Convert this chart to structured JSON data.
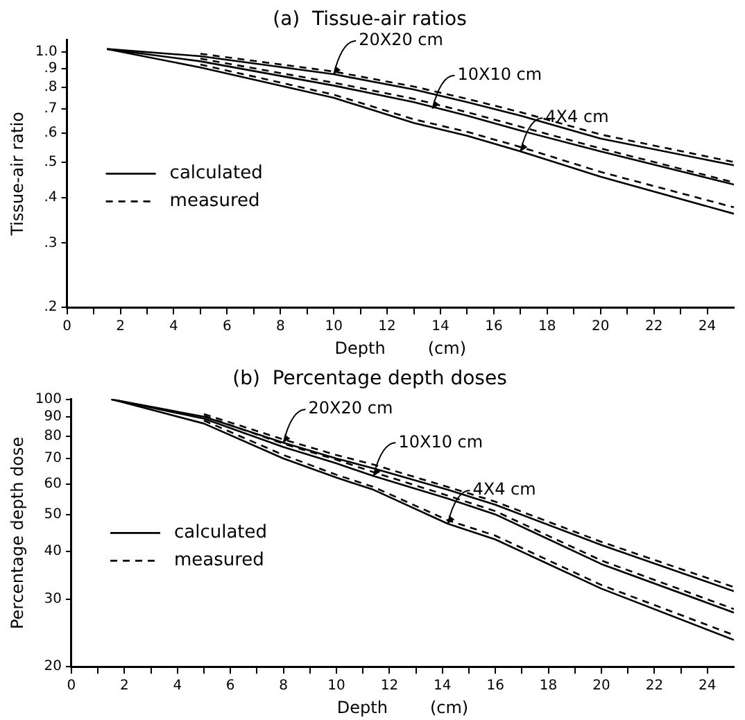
{
  "chart_data": [
    {
      "type": "line",
      "title": "(a)  Tissue-air ratios",
      "xlabel": "Depth        (cm)",
      "ylabel": "Tissue-air ratio",
      "log": "y",
      "grid": false,
      "legend": "left",
      "marker": "none",
      "x": [
        1.5,
        5,
        10,
        13,
        15,
        17,
        20,
        25
      ],
      "xlim": [
        0,
        25
      ],
      "xticks": [
        0,
        {
          "value": 1,
          "label": null
        },
        2,
        {
          "value": 3,
          "label": null
        },
        4,
        {
          "value": 5,
          "label": null
        },
        6,
        {
          "value": 7,
          "label": null
        },
        8,
        {
          "value": 9,
          "label": null
        },
        10,
        {
          "value": 11,
          "label": null
        },
        12,
        {
          "value": 13,
          "label": null
        },
        14,
        {
          "value": 15,
          "label": null
        },
        16,
        {
          "value": 17,
          "label": null
        },
        18,
        {
          "value": 19,
          "label": null
        },
        20,
        {
          "value": 21,
          "label": null
        },
        22,
        {
          "value": 23,
          "label": null
        },
        24
      ],
      "ylim": [
        0.2,
        1.08
      ],
      "yticks": [
        {
          "value": 0.2,
          "label": ".2"
        },
        {
          "value": 0.3,
          "label": ".3"
        },
        {
          "value": 0.4,
          "label": ".4"
        },
        {
          "value": 0.5,
          "label": ".5"
        },
        {
          "value": 0.6,
          "label": ".6"
        },
        {
          "value": 0.7,
          "label": ".7"
        },
        {
          "value": 0.8,
          "label": ".8"
        },
        {
          "value": 0.9,
          "label": ".9"
        },
        {
          "value": 1.0,
          "label": "1.0"
        }
      ],
      "series": [
        {
          "name": "calculated",
          "color": "#000000",
          "line_style": "solid",
          "values": [
            1.02,
            0.975,
            0.87,
            0.79,
            0.73,
            0.67,
            0.58,
            0.49
          ]
        },
        {
          "color": "#000000",
          "line_style": "solid",
          "values": [
            1.02,
            0.944,
            0.81,
            0.73,
            0.67,
            0.61,
            0.535,
            0.434
          ]
        },
        {
          "color": "#000000",
          "line_style": "solid",
          "values": [
            1.02,
            0.908,
            0.75,
            0.64,
            0.59,
            0.535,
            0.456,
            0.361
          ]
        },
        {
          "name": "measured",
          "color": "#000000",
          "line_style": "dashed",
          "values": [
            null,
            0.99,
            0.885,
            0.805,
            0.745,
            0.685,
            0.595,
            0.5
          ]
        },
        {
          "color": "#000000",
          "line_style": "dashed",
          "values": [
            null,
            0.96,
            0.825,
            0.745,
            0.685,
            0.625,
            0.545,
            0.44
          ]
        },
        {
          "color": "#000000",
          "line_style": "dashed",
          "values": [
            null,
            0.925,
            0.765,
            0.655,
            0.605,
            0.55,
            0.47,
            0.376
          ]
        }
      ],
      "annotations": [
        {
          "text": "20X20 cm",
          "x": 10,
          "y": 0.87
        },
        {
          "text": "10X10 cm",
          "x": 13.7,
          "y": 0.7
        },
        {
          "text": "4X4 cm",
          "x": 17,
          "y": 0.535
        }
      ]
    },
    {
      "type": "line",
      "title": "(b)  Percentage depth doses",
      "xlabel": "Depth        (cm)",
      "ylabel": "Percentage depth dose",
      "log": "y",
      "grid": false,
      "legend": "left",
      "marker": "none",
      "x": [
        1.5,
        5,
        8,
        10,
        11.4,
        14.2,
        16,
        20,
        25
      ],
      "xlim": [
        0,
        25
      ],
      "xticks": [
        0,
        {
          "value": 1,
          "label": null
        },
        2,
        {
          "value": 3,
          "label": null
        },
        4,
        {
          "value": 5,
          "label": null
        },
        6,
        {
          "value": 7,
          "label": null
        },
        8,
        {
          "value": 9,
          "label": null
        },
        10,
        {
          "value": 11,
          "label": null
        },
        12,
        {
          "value": 13,
          "label": null
        },
        14,
        {
          "value": 15,
          "label": null
        },
        16,
        {
          "value": 17,
          "label": null
        },
        18,
        {
          "value": 19,
          "label": null
        },
        20,
        {
          "value": 21,
          "label": null
        },
        22,
        {
          "value": 23,
          "label": null
        },
        24
      ],
      "ylim": [
        20,
        100
      ],
      "yticks": [
        20,
        30,
        40,
        50,
        60,
        70,
        80,
        90,
        100
      ],
      "series": [
        {
          "name": "calculated",
          "color": "#000000",
          "line_style": "solid",
          "values": [
            100,
            90,
            77,
            70,
            66,
            58,
            53,
            41.6,
            31.5
          ]
        },
        {
          "color": "#000000",
          "line_style": "solid",
          "values": [
            100,
            89,
            75,
            68,
            63,
            55,
            50,
            37.1,
            27.7
          ]
        },
        {
          "color": "#000000",
          "line_style": "solid",
          "values": [
            100,
            86.4,
            70,
            62.4,
            58,
            47.3,
            43,
            32,
            23.5
          ]
        },
        {
          "name": "measured",
          "color": "#000000",
          "line_style": "dashed",
          "values": [
            null,
            91.5,
            78.5,
            71.5,
            67.5,
            59,
            54,
            42.4,
            32.3
          ]
        },
        {
          "color": "#000000",
          "line_style": "dashed",
          "values": [
            null,
            90.5,
            76.5,
            69.5,
            64.5,
            56,
            51,
            37.9,
            28.3
          ]
        },
        {
          "color": "#000000",
          "line_style": "dashed",
          "values": [
            null,
            88,
            71.5,
            63.5,
            59,
            48.3,
            44,
            32.7,
            24.2
          ]
        }
      ],
      "annotations": [
        {
          "text": "20X20 cm",
          "x": 8,
          "y": 77
        },
        {
          "text": "10X10 cm",
          "x": 11.4,
          "y": 63
        },
        {
          "text": "4X4 cm",
          "x": 14.2,
          "y": 47.3
        }
      ]
    }
  ]
}
